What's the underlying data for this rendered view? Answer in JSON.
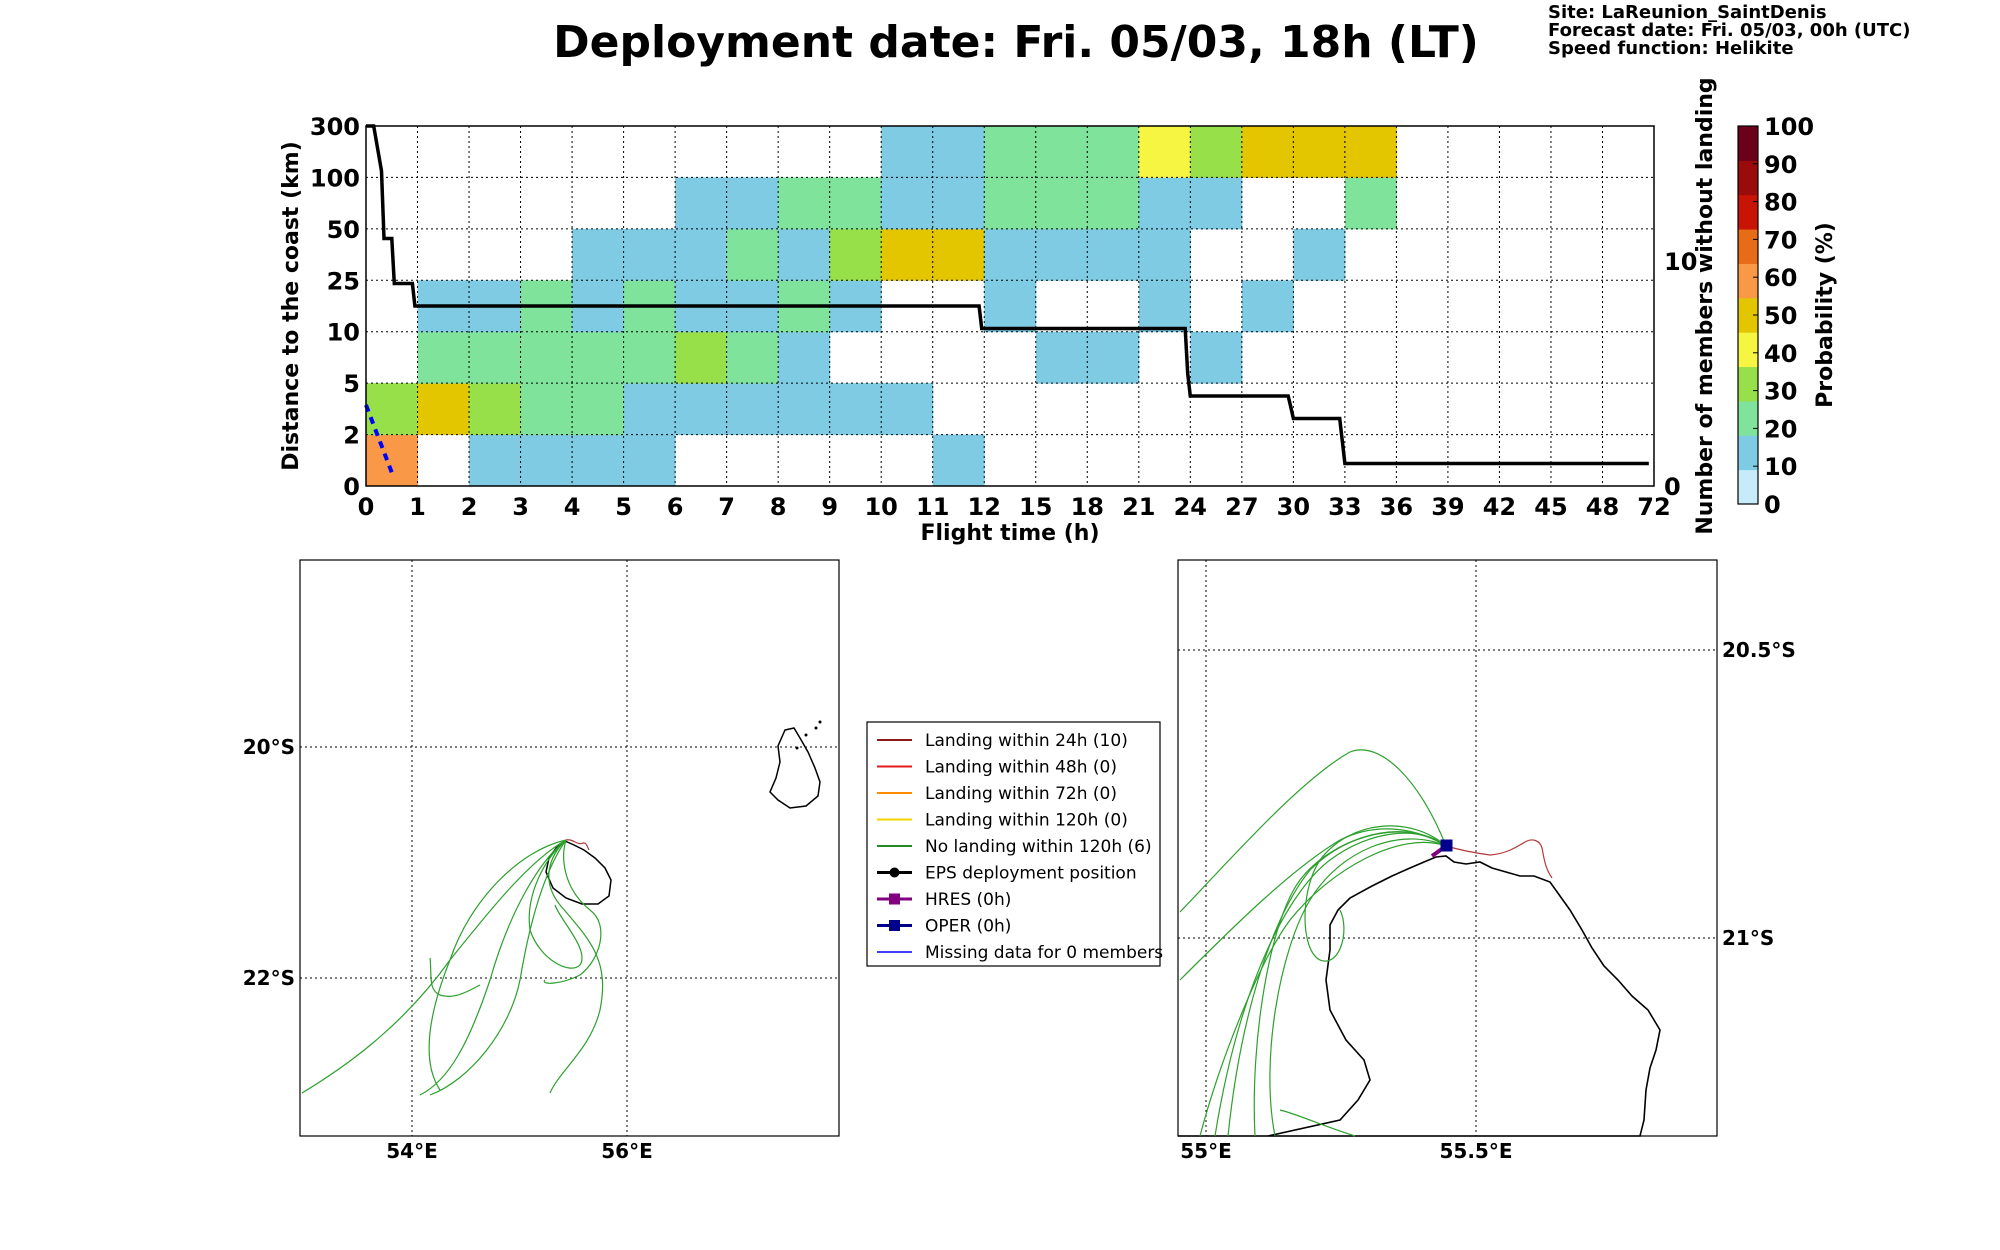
{
  "header": {
    "title": "Deployment date: Fri. 05/03, 18h (LT)",
    "site": "Site: LaReunion_SaintDenis",
    "forecast": "Forecast date: Fri. 05/03, 00h (UTC)",
    "speed": "Speed function: Helikite"
  },
  "chart_data": [
    {
      "type": "heatmap",
      "title": "Deployment date: Fri. 05/03, 18h (LT)",
      "xlabel": "Flight time (h)",
      "ylabel": "Distance to the coast (km)",
      "y2label": "Number of members without landing",
      "colorbar_label": "Probability (%)",
      "x_ticks": [
        "0",
        "1",
        "2",
        "3",
        "4",
        "5",
        "6",
        "7",
        "8",
        "9",
        "10",
        "11",
        "12",
        "15",
        "18",
        "21",
        "24",
        "27",
        "30",
        "33",
        "36",
        "39",
        "42",
        "45",
        "48",
        "72"
      ],
      "y_ticks": [
        "0",
        "2",
        "5",
        "10",
        "25",
        "50",
        "100",
        "300"
      ],
      "y2_ticks": [
        "0",
        "10"
      ],
      "y2_range": [
        0,
        16
      ],
      "colorbar": {
        "ticks": [
          "0",
          "10",
          "20",
          "30",
          "40",
          "50",
          "60",
          "70",
          "80",
          "90",
          "100"
        ],
        "colors": [
          "#c6ecfa",
          "#7fcbe4",
          "#7fe39b",
          "#97e04a",
          "#f5f542",
          "#e3c600",
          "#f99948",
          "#e66c18",
          "#c81405",
          "#9a0b0b",
          "#6a0019"
        ]
      },
      "cells_note": "cells listed as [x_bin_index, y_bin_index, probability_percent]",
      "cells": [
        [
          0,
          0,
          60
        ],
        [
          2,
          0,
          10
        ],
        [
          3,
          0,
          10
        ],
        [
          4,
          0,
          10
        ],
        [
          5,
          0,
          10
        ],
        [
          11,
          0,
          10
        ],
        [
          0,
          1,
          30
        ],
        [
          1,
          1,
          50
        ],
        [
          2,
          1,
          30
        ],
        [
          3,
          1,
          20
        ],
        [
          4,
          1,
          20
        ],
        [
          5,
          1,
          10
        ],
        [
          6,
          1,
          10
        ],
        [
          7,
          1,
          10
        ],
        [
          8,
          1,
          10
        ],
        [
          9,
          1,
          10
        ],
        [
          10,
          1,
          10
        ],
        [
          1,
          2,
          20
        ],
        [
          2,
          2,
          20
        ],
        [
          3,
          2,
          20
        ],
        [
          4,
          2,
          20
        ],
        [
          5,
          2,
          20
        ],
        [
          6,
          2,
          30
        ],
        [
          7,
          2,
          20
        ],
        [
          8,
          2,
          10
        ],
        [
          13,
          2,
          10
        ],
        [
          14,
          2,
          10
        ],
        [
          16,
          2,
          10
        ],
        [
          1,
          3,
          10
        ],
        [
          2,
          3,
          10
        ],
        [
          3,
          3,
          20
        ],
        [
          4,
          3,
          10
        ],
        [
          5,
          3,
          20
        ],
        [
          6,
          3,
          10
        ],
        [
          7,
          3,
          10
        ],
        [
          8,
          3,
          20
        ],
        [
          9,
          3,
          10
        ],
        [
          12,
          3,
          10
        ],
        [
          15,
          3,
          10
        ],
        [
          17,
          3,
          10
        ],
        [
          4,
          4,
          10
        ],
        [
          5,
          4,
          10
        ],
        [
          6,
          4,
          10
        ],
        [
          7,
          4,
          20
        ],
        [
          8,
          4,
          10
        ],
        [
          9,
          4,
          30
        ],
        [
          10,
          4,
          50
        ],
        [
          11,
          4,
          50
        ],
        [
          12,
          4,
          10
        ],
        [
          13,
          4,
          10
        ],
        [
          14,
          4,
          10
        ],
        [
          15,
          4,
          10
        ],
        [
          18,
          4,
          10
        ],
        [
          6,
          5,
          10
        ],
        [
          7,
          5,
          10
        ],
        [
          8,
          5,
          20
        ],
        [
          9,
          5,
          20
        ],
        [
          10,
          5,
          10
        ],
        [
          11,
          5,
          10
        ],
        [
          12,
          5,
          20
        ],
        [
          13,
          5,
          20
        ],
        [
          14,
          5,
          20
        ],
        [
          15,
          5,
          10
        ],
        [
          16,
          5,
          10
        ],
        [
          19,
          5,
          20
        ],
        [
          10,
          6,
          10
        ],
        [
          11,
          6,
          10
        ],
        [
          12,
          6,
          20
        ],
        [
          13,
          6,
          20
        ],
        [
          14,
          6,
          20
        ],
        [
          15,
          6,
          40
        ],
        [
          16,
          6,
          30
        ],
        [
          17,
          6,
          50
        ],
        [
          18,
          6,
          50
        ],
        [
          19,
          6,
          50
        ]
      ],
      "members_without_landing": {
        "x_bin_position": [
          0,
          0.15,
          0.3,
          0.35,
          0.5,
          0.55,
          0.9,
          0.95,
          1,
          11.9,
          11.95,
          12,
          15.9,
          15.95,
          16,
          17.9,
          18,
          18.9,
          18.95,
          19,
          24.9
        ],
        "values": [
          16,
          16,
          14,
          11,
          11,
          9,
          9,
          8,
          8,
          8,
          7,
          7,
          7,
          5,
          4,
          4,
          3,
          3,
          2,
          1,
          1
        ]
      },
      "secondary_dashed": {
        "color": "#0000ff",
        "x_bin_position": [
          0,
          0.5
        ],
        "values": [
          3.6,
          0.6
        ]
      }
    },
    {
      "type": "map",
      "x_ticks": [
        "54°E",
        "56°E"
      ],
      "y_ticks": [
        "20°S",
        "22°S"
      ]
    },
    {
      "type": "map",
      "x_ticks": [
        "55°E",
        "55.5°E"
      ],
      "y_ticks": [
        "20.5°S",
        "21°S"
      ]
    }
  ],
  "legend": [
    {
      "label": "Landing within 24h (10)",
      "color": "#8b1a1a",
      "marker": ""
    },
    {
      "label": "Landing within 48h (0)",
      "color": "#e41a1c",
      "marker": ""
    },
    {
      "label": "Landing within 72h (0)",
      "color": "#ff8c00",
      "marker": ""
    },
    {
      "label": "Landing within 120h (0)",
      "color": "#f5d300",
      "marker": ""
    },
    {
      "label": "No landing within 120h (6)",
      "color": "#228b22",
      "marker": ""
    },
    {
      "label": "EPS deployment position",
      "color": "#000000",
      "marker": "circle"
    },
    {
      "label": "HRES (0h)",
      "color": "#800080",
      "marker": "square"
    },
    {
      "label": "OPER (0h)",
      "color": "#00008b",
      "marker": "square"
    },
    {
      "label": "Missing data for 0 members",
      "color": "#4040ff",
      "marker": ""
    }
  ],
  "colors": {
    "trajectory_green": "#2ca02c",
    "trajectory_red": "#b33b3b",
    "coast": "#000000"
  }
}
